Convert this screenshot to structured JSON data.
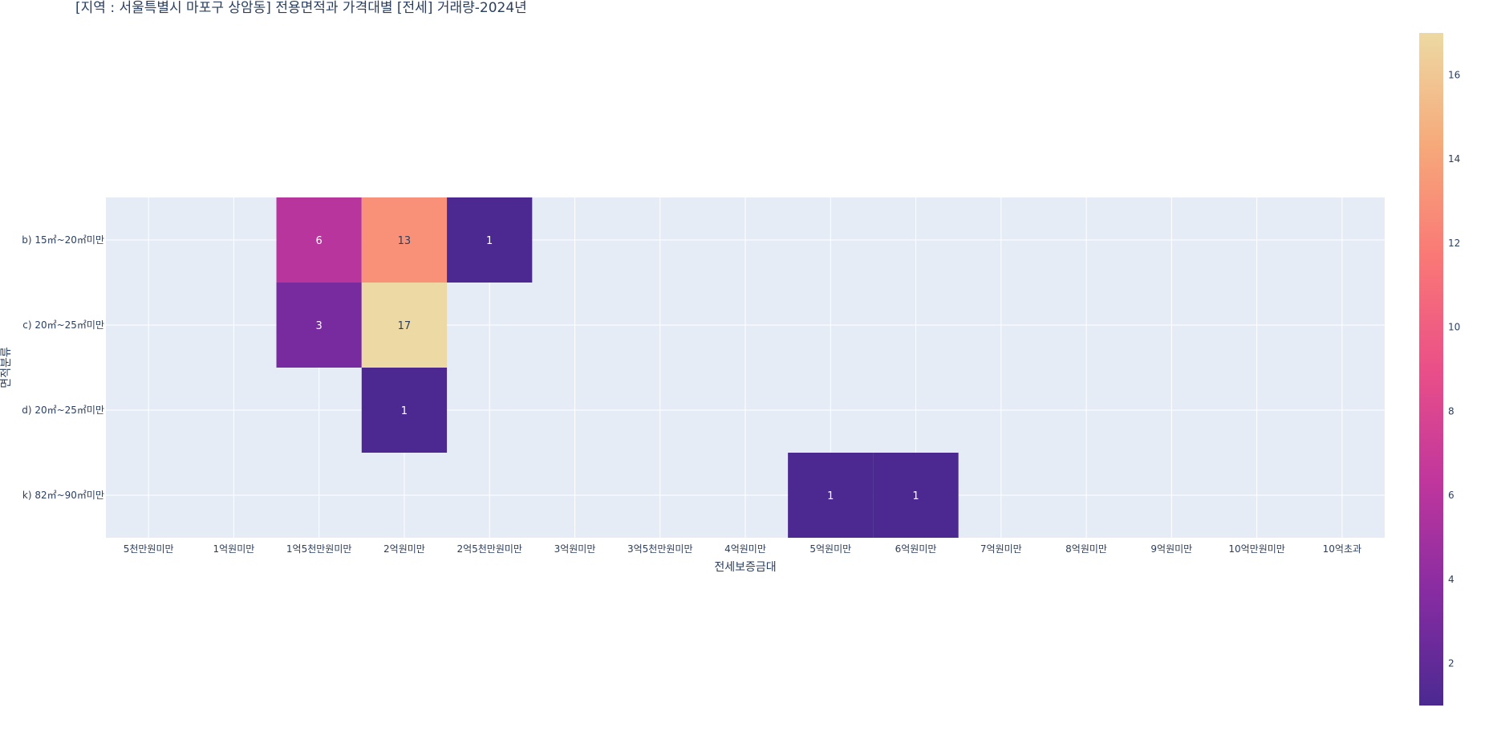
{
  "chart_data": {
    "type": "heatmap",
    "title": "[지역 : 서울특별시 마포구 상암동] 전용면적과 가격대별 [전세] 거래량-2024년",
    "xlabel": "전세보증금대",
    "ylabel": "면적분류",
    "x_categories": [
      "5천만원미만",
      "1억원미만",
      "1억5천만원미만",
      "2억원미만",
      "2억5천만원미만",
      "3억원미만",
      "3억5천만원미만",
      "4억원미만",
      "5억원미만",
      "6억원미만",
      "7억원미만",
      "8억원미만",
      "9억원미만",
      "10억만원미만",
      "10억초과"
    ],
    "y_categories": [
      "b) 15㎡~20㎡미만",
      "c) 20㎡~25㎡미만",
      "d) 20㎡~25㎡미만",
      "k) 82㎡~90㎡미만"
    ],
    "cells": [
      {
        "x": "1억5천만원미만",
        "y": "b) 15㎡~20㎡미만",
        "value": 6
      },
      {
        "x": "2억원미만",
        "y": "b) 15㎡~20㎡미만",
        "value": 13
      },
      {
        "x": "2억5천만원미만",
        "y": "b) 15㎡~20㎡미만",
        "value": 1
      },
      {
        "x": "1억5천만원미만",
        "y": "c) 20㎡~25㎡미만",
        "value": 3
      },
      {
        "x": "2억원미만",
        "y": "c) 20㎡~25㎡미만",
        "value": 17
      },
      {
        "x": "2억원미만",
        "y": "d) 20㎡~25㎡미만",
        "value": 1
      },
      {
        "x": "5억원미만",
        "y": "k) 82㎡~90㎡미만",
        "value": 1
      },
      {
        "x": "6억원미만",
        "y": "k) 82㎡~90㎡미만",
        "value": 1
      }
    ],
    "colorscale": {
      "range": [
        1,
        17
      ],
      "ticks": [
        2,
        4,
        6,
        8,
        10,
        12,
        14,
        16
      ],
      "colors": [
        "#4b2991",
        "#872ca2",
        "#c0369d",
        "#ea4f88",
        "#fa7876",
        "#f6a97a",
        "#edd9a3"
      ]
    },
    "plot_background": "#e5ecf6",
    "grid": true
  }
}
